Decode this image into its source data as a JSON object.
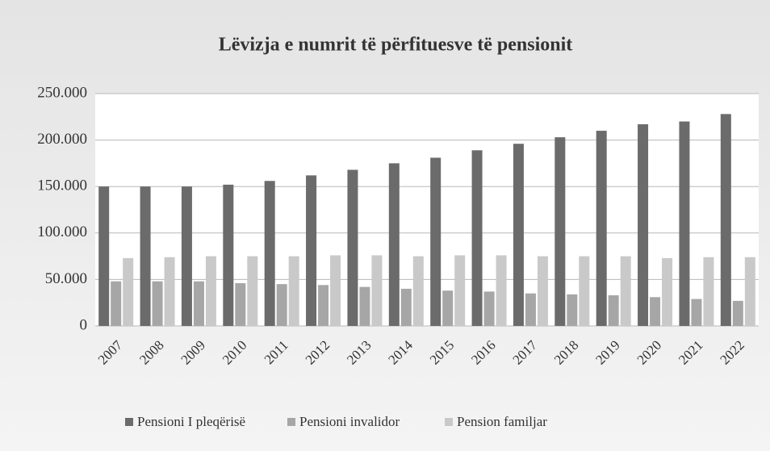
{
  "chart_data": {
    "type": "bar",
    "title": "Lëvizja e numrit të përfituesve të pensionit",
    "categories": [
      "2007",
      "2008",
      "2009",
      "2010",
      "2011",
      "2012",
      "2013",
      "2014",
      "2015",
      "2016",
      "2017",
      "2018",
      "2019",
      "2020",
      "2021",
      "2022"
    ],
    "series": [
      {
        "name": "Pensioni I pleqërisë",
        "color": "#6b6b6b",
        "values": [
          150000,
          150000,
          150000,
          152000,
          156000,
          162000,
          168000,
          175000,
          181000,
          189000,
          196000,
          203000,
          210000,
          217000,
          220000,
          228000
        ]
      },
      {
        "name": "Pensioni invalidor",
        "color": "#a6a6a6",
        "values": [
          48000,
          48000,
          48000,
          46000,
          45000,
          44000,
          42000,
          40000,
          38000,
          37000,
          35000,
          34000,
          33000,
          31000,
          29000,
          27000
        ]
      },
      {
        "name": "Pension familjar",
        "color": "#c9c9c9",
        "values": [
          73000,
          74000,
          75000,
          75000,
          75000,
          76000,
          76000,
          75000,
          76000,
          76000,
          75000,
          75000,
          75000,
          73000,
          74000,
          74000
        ]
      }
    ],
    "ylim": [
      0,
      250000
    ],
    "yticks": [
      0,
      {
        "value": 50000,
        "label": "50.000"
      },
      {
        "value": 100000,
        "label": "100.000"
      },
      {
        "value": 150000,
        "label": "150.000"
      },
      {
        "value": 200000,
        "label": "200.000"
      },
      {
        "value": 250000,
        "label": "250.000"
      }
    ],
    "grid": true,
    "legend": "bottom"
  }
}
